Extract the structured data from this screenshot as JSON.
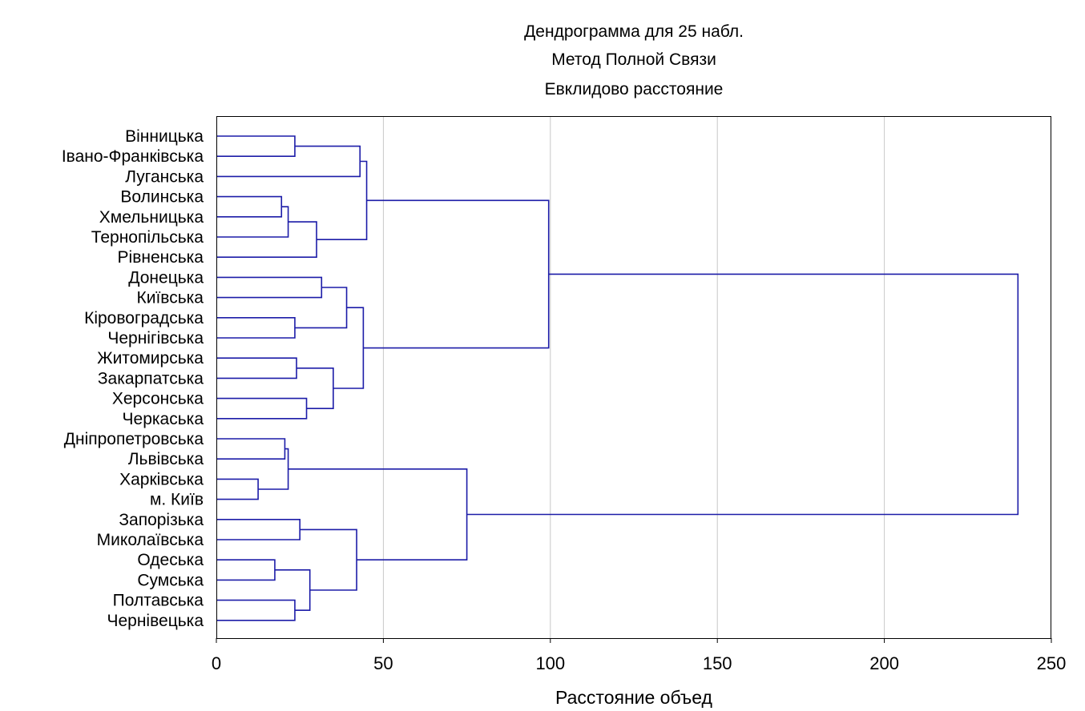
{
  "chart_data": {
    "type": "dendrogram",
    "title": [
      "Дендрограмма для 25 набл.",
      "Метод Полной Связи",
      "Евклидово расстояние"
    ],
    "xlabel": "Расстояние объед",
    "xlim": [
      0,
      250
    ],
    "xticks": [
      0,
      50,
      100,
      150,
      200,
      250
    ],
    "grid": true,
    "leaves": [
      "Вінницька",
      "Івано-Франківська",
      "Луганська",
      "Волинська",
      "Хмельницька",
      "Тернопільська",
      "Рівненська",
      "Донецька",
      "Київська",
      "Кіровоградська",
      "Чернігівська",
      "Житомирська",
      "Закарпатська",
      "Херсонська",
      "Черкаська",
      "Дніпропетровська",
      "Львівська",
      "Харківська",
      "м. Київ",
      "Запорізька",
      "Миколаївська",
      "Одеська",
      "Сумська",
      "Полтавська",
      "Чернівецька"
    ],
    "merges": [
      {
        "a": "L18",
        "b": "L19",
        "height": 12.5
      },
      {
        "a": "L22",
        "b": "L23",
        "height": 17.5
      },
      {
        "a": "L4",
        "b": "L5",
        "height": 19.5
      },
      {
        "a": "L16",
        "b": "L17",
        "height": 20.5
      },
      {
        "a": "M2",
        "b": "L6",
        "height": 21.5
      },
      {
        "a": "M3",
        "b": "M0",
        "height": 21.5
      },
      {
        "a": "L1",
        "b": "L2",
        "height": 23.5
      },
      {
        "a": "L10",
        "b": "L11",
        "height": 23.5
      },
      {
        "a": "L24",
        "b": "L25",
        "height": 23.5
      },
      {
        "a": "L12",
        "b": "L13",
        "height": 24.0
      },
      {
        "a": "L20",
        "b": "L21",
        "height": 25.0
      },
      {
        "a": "L14",
        "b": "L15",
        "height": 27.0
      },
      {
        "a": "M1",
        "b": "M8",
        "height": 28.0
      },
      {
        "a": "M4",
        "b": "L7",
        "height": 30.0
      },
      {
        "a": "L8",
        "b": "L9",
        "height": 31.5
      },
      {
        "a": "M9",
        "b": "M11",
        "height": 35.0
      },
      {
        "a": "M14",
        "b": "M7",
        "height": 39.0
      },
      {
        "a": "M10",
        "b": "M12",
        "height": 42.0
      },
      {
        "a": "M6",
        "b": "L3",
        "height": 43.0
      },
      {
        "a": "M16",
        "b": "M15",
        "height": 44.0
      },
      {
        "a": "M18",
        "b": "M13",
        "height": 45.0
      },
      {
        "a": "M5",
        "b": "M17",
        "height": 75.0
      },
      {
        "a": "M20",
        "b": "M19",
        "height": 99.5
      },
      {
        "a": "M22",
        "b": "M21",
        "height": 240.0
      }
    ]
  },
  "colors": {
    "tree": "#1c1ca8",
    "grid": "#c8c8c8",
    "frame": "#000000",
    "text": "#000000"
  }
}
